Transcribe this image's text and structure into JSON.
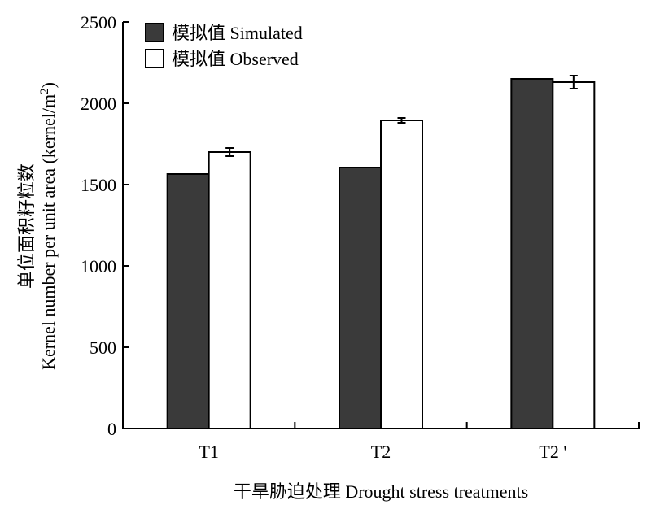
{
  "chart_data": {
    "type": "bar",
    "categories": [
      "T1",
      "T2",
      "T2 '"
    ],
    "series": [
      {
        "name": "模拟值 Simulated",
        "values": [
          1565,
          1605,
          2150
        ],
        "color": "#3a3a3a"
      },
      {
        "name": "模拟值 Observed",
        "values": [
          1700,
          1895,
          2130
        ],
        "errors": [
          25,
          15,
          40
        ],
        "color": "#ffffff"
      }
    ],
    "xlabel": "干旱胁迫处理 Drought stress treatments",
    "ylabel_cn": "单位面积籽粒数",
    "ylabel_en": "Kernel number per unit area (kernel/m",
    "ylabel_sup": "2",
    "ylabel_end": ")",
    "ylim": [
      0,
      2500
    ],
    "yticks": [
      0,
      500,
      1000,
      1500,
      2000,
      2500
    ],
    "legend_position": "top-left",
    "grid": false
  }
}
